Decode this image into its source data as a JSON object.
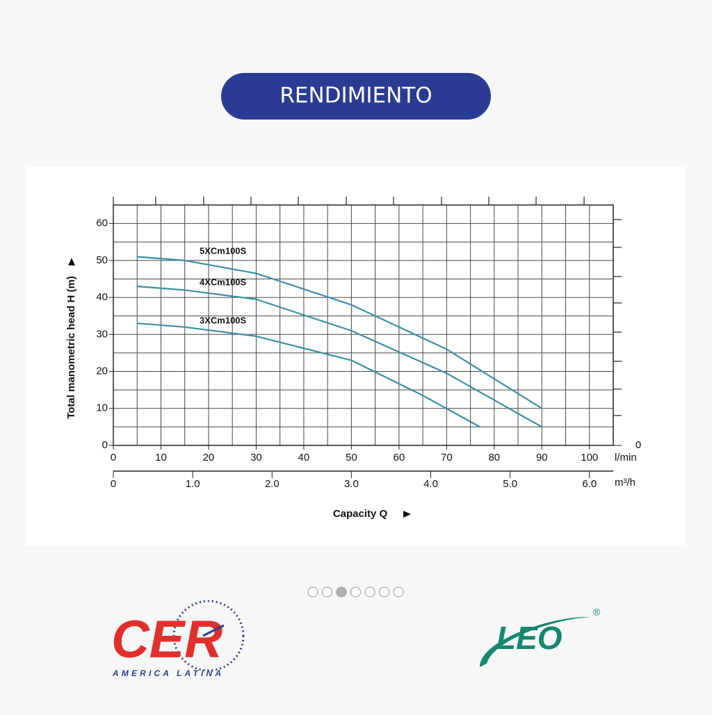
{
  "header": {
    "title": "RENDIMIENTO"
  },
  "chart_data": {
    "type": "line",
    "y_label": "Total manometric head H (m)",
    "x_label": "Capacity Q",
    "x_unit": "l/min",
    "x2_unit": "m³/h",
    "xlim": [
      0,
      105
    ],
    "ylim": [
      0,
      65
    ],
    "xticks": [
      0,
      10,
      20,
      30,
      40,
      50,
      60,
      70,
      80,
      90,
      100
    ],
    "yticks": [
      0,
      10,
      20,
      30,
      40,
      50,
      60
    ],
    "xgrid": [
      0,
      5,
      10,
      15,
      20,
      25,
      30,
      35,
      40,
      45,
      50,
      55,
      60,
      65,
      70,
      75,
      80,
      85,
      90,
      95,
      100,
      105
    ],
    "ygrid": [
      0,
      5,
      10,
      15,
      20,
      25,
      30,
      35,
      40,
      45,
      50,
      55,
      60,
      65
    ],
    "x2lim": [
      0,
      6.3
    ],
    "x2ticks": [
      0,
      {
        "value": 1,
        "label": "1.0"
      },
      {
        "value": 2,
        "label": "2.0"
      },
      {
        "value": 3,
        "label": "3.0"
      },
      {
        "value": 4,
        "label": "4.0"
      },
      {
        "value": 5,
        "label": "5.0"
      },
      {
        "value": 6,
        "label": "6.0"
      }
    ],
    "y2lim": [
      0,
      65
    ],
    "y2ticks": [
      0
    ],
    "series": [
      {
        "name": "5XCm100S",
        "color": "#3a8ea6",
        "x": [
          5,
          15,
          30,
          50,
          70,
          90
        ],
        "values": [
          51,
          50,
          46.5,
          38,
          26,
          10
        ]
      },
      {
        "name": "4XCm100S",
        "color": "#3a8ea6",
        "x": [
          5,
          15,
          30,
          50,
          70,
          90
        ],
        "values": [
          43,
          42,
          39.5,
          31,
          19.5,
          5
        ]
      },
      {
        "name": "3XCm100S",
        "color": "#3a8ea6",
        "x": [
          5,
          15,
          30,
          50,
          65,
          77
        ],
        "values": [
          33,
          32,
          29.5,
          23,
          13.5,
          5
        ]
      }
    ]
  },
  "pager": {
    "count": 7,
    "active": 2
  },
  "logos": {
    "cer": {
      "text": "CER",
      "subtitle": "AMERICA LATINA"
    },
    "leo": {
      "text": "LEO",
      "mark": "®"
    }
  }
}
